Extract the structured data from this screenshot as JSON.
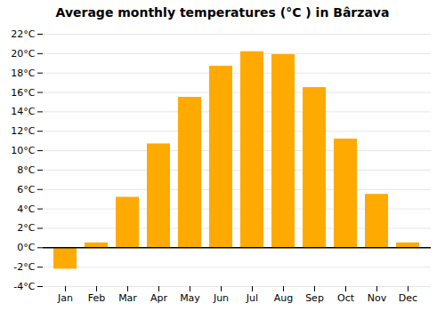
{
  "chart_data": {
    "type": "bar",
    "title": "Average monthly temperatures (°C ) in Bârzava",
    "categories": [
      "Jan",
      "Feb",
      "Mar",
      "Apr",
      "May",
      "Jun",
      "Jul",
      "Aug",
      "Sep",
      "Oct",
      "Nov",
      "Dec"
    ],
    "values": [
      -2.2,
      0.5,
      5.2,
      10.7,
      15.5,
      18.7,
      20.2,
      19.9,
      16.5,
      11.2,
      5.5,
      0.5
    ],
    "color": "#FFAA00",
    "ylim": [
      -4,
      22
    ],
    "yticks": [
      {
        "value": -4,
        "label": "-4°C"
      },
      {
        "value": -2,
        "label": "-2°C"
      },
      {
        "value": 0,
        "label": "0°C"
      },
      {
        "value": 2,
        "label": "2°C"
      },
      {
        "value": 4,
        "label": "4°C"
      },
      {
        "value": 6,
        "label": "6°C"
      },
      {
        "value": 8,
        "label": "8°C"
      },
      {
        "value": 10,
        "label": "10°C"
      },
      {
        "value": 12,
        "label": "12°C"
      },
      {
        "value": 14,
        "label": "14°C"
      },
      {
        "value": 16,
        "label": "16°C"
      },
      {
        "value": 18,
        "label": "18°C"
      },
      {
        "value": 20,
        "label": "20°C"
      },
      {
        "value": 22,
        "label": "22°C"
      }
    ],
    "grid": true
  }
}
